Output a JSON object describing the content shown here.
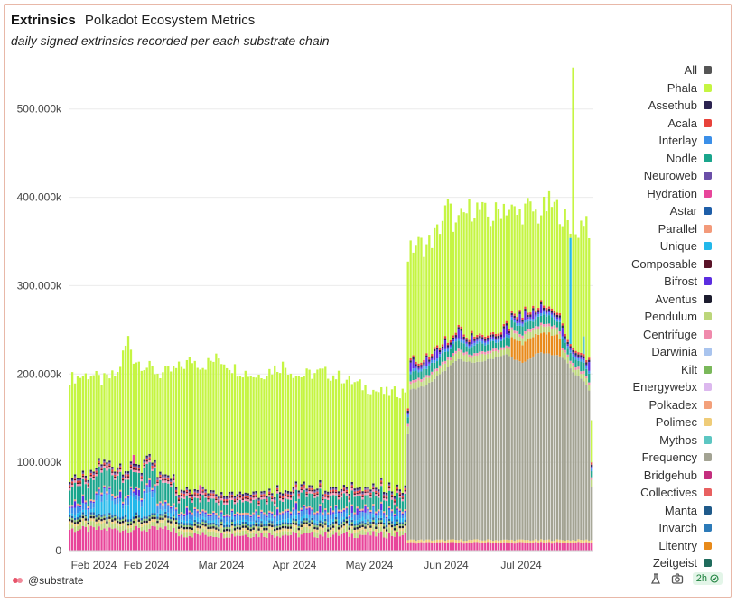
{
  "header": {
    "title": "Extrinsics",
    "dashboard": "Polkadot Ecosystem Metrics",
    "subtitle": "daily signed extrinsics recorded per each substrate chain"
  },
  "footer": {
    "author": "@substrate",
    "refresh": "2h"
  },
  "legend": [
    {
      "name": "All",
      "color": "#555555"
    },
    {
      "name": "Phala",
      "color": "#c5f542"
    },
    {
      "name": "Assethub",
      "color": "#2b2350"
    },
    {
      "name": "Acala",
      "color": "#e8423a"
    },
    {
      "name": "Interlay",
      "color": "#3b8fe8"
    },
    {
      "name": "Nodle",
      "color": "#1aa58c"
    },
    {
      "name": "Neuroweb",
      "color": "#6b4fa8"
    },
    {
      "name": "Hydration",
      "color": "#e8459a"
    },
    {
      "name": "Astar",
      "color": "#1e5ea8"
    },
    {
      "name": "Parallel",
      "color": "#f39a7a"
    },
    {
      "name": "Unique",
      "color": "#22b8ea"
    },
    {
      "name": "Composable",
      "color": "#5a1328"
    },
    {
      "name": "Bifrost",
      "color": "#5b2de0"
    },
    {
      "name": "Aventus",
      "color": "#1c1c2e"
    },
    {
      "name": "Pendulum",
      "color": "#bcd67a"
    },
    {
      "name": "Centrifuge",
      "color": "#f08aac"
    },
    {
      "name": "Darwinia",
      "color": "#a9c4ee"
    },
    {
      "name": "Kilt",
      "color": "#7ab85a"
    },
    {
      "name": "Energywebx",
      "color": "#dcb8ee"
    },
    {
      "name": "Polkadex",
      "color": "#f3a07a"
    },
    {
      "name": "Polimec",
      "color": "#efcc78"
    },
    {
      "name": "Mythos",
      "color": "#5cc6c2"
    },
    {
      "name": "Frequency",
      "color": "#a3a393"
    },
    {
      "name": "Bridgehub",
      "color": "#c42e7e"
    },
    {
      "name": "Collectives",
      "color": "#e86060"
    },
    {
      "name": "Manta",
      "color": "#1f5a8a"
    },
    {
      "name": "Invarch",
      "color": "#2c7ab8"
    },
    {
      "name": "Litentry",
      "color": "#e88a1a"
    },
    {
      "name": "Zeitgeist",
      "color": "#1f6b5c"
    }
  ],
  "chart_data": {
    "type": "bar",
    "stacked": true,
    "x_ticks": [
      "Feb 2024",
      "Feb 2024",
      "Mar 2024",
      "Apr 2024",
      "May 2024",
      "Jun 2024",
      "Jul 2024"
    ],
    "y_ticks": [
      "0",
      "100.000k",
      "200.000k",
      "300.000k",
      "400.000k",
      "500.000k"
    ],
    "ylim": [
      0,
      560000
    ],
    "grid": true,
    "legend_position": "right",
    "n_days": 197,
    "totals_keypoints": [
      [
        0,
        195000
      ],
      [
        8,
        200000
      ],
      [
        12,
        192000
      ],
      [
        18,
        200000
      ],
      [
        20,
        222000
      ],
      [
        22,
        240000
      ],
      [
        24,
        218000
      ],
      [
        28,
        210000
      ],
      [
        34,
        200000
      ],
      [
        40,
        205000
      ],
      [
        46,
        216000
      ],
      [
        50,
        210000
      ],
      [
        56,
        218000
      ],
      [
        62,
        206000
      ],
      [
        70,
        198000
      ],
      [
        80,
        210000
      ],
      [
        86,
        198000
      ],
      [
        95,
        202000
      ],
      [
        102,
        196000
      ],
      [
        110,
        186000
      ],
      [
        118,
        178000
      ],
      [
        125,
        180000
      ],
      [
        126,
        182000
      ],
      [
        127,
        335000
      ],
      [
        130,
        348000
      ],
      [
        134,
        345000
      ],
      [
        138,
        360000
      ],
      [
        142,
        390000
      ],
      [
        145,
        365000
      ],
      [
        148,
        380000
      ],
      [
        152,
        390000
      ],
      [
        158,
        375000
      ],
      [
        163,
        392000
      ],
      [
        168,
        380000
      ],
      [
        172,
        388000
      ],
      [
        176,
        380000
      ],
      [
        180,
        392000
      ],
      [
        184,
        385000
      ],
      [
        186,
        375000
      ],
      [
        188,
        360000
      ],
      [
        190,
        355000
      ],
      [
        193,
        380000
      ],
      [
        195,
        350000
      ],
      [
        196,
        150000
      ]
    ],
    "spike": {
      "day": 189,
      "total": 547000
    },
    "frequency_keypoints": [
      [
        0,
        0
      ],
      [
        126,
        0
      ],
      [
        127,
        120000
      ],
      [
        128,
        170000
      ],
      [
        134,
        175000
      ],
      [
        140,
        190000
      ],
      [
        146,
        205000
      ],
      [
        152,
        200000
      ],
      [
        158,
        205000
      ],
      [
        164,
        210000
      ],
      [
        170,
        200000
      ],
      [
        176,
        212000
      ],
      [
        182,
        210000
      ],
      [
        186,
        205000
      ],
      [
        189,
        190000
      ],
      [
        193,
        180000
      ],
      [
        195,
        170000
      ],
      [
        196,
        60000
      ]
    ],
    "litentry": {
      "start": 166,
      "end": 184,
      "value": 20000
    },
    "unique_peak": {
      "start": 10,
      "end": 32,
      "value": 18000
    }
  }
}
